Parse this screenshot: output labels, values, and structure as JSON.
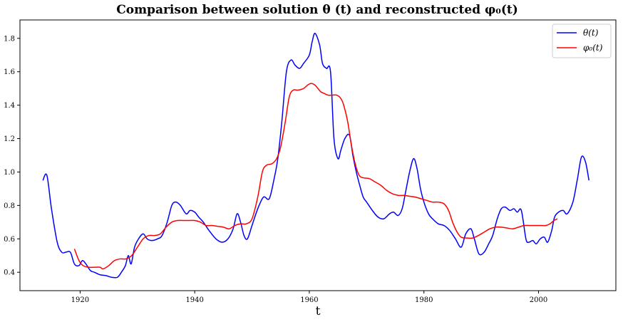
{
  "chart_data": {
    "type": "line",
    "title": "Comparison between solution θ (t)  and reconstructed  φ₀(t)",
    "xlabel": "t",
    "ylabel": "",
    "xlim": [
      1909.5,
      2013.5
    ],
    "ylim": [
      0.29,
      1.91
    ],
    "xticks": [
      1920,
      1940,
      1960,
      1980,
      2000
    ],
    "yticks": [
      0.4,
      0.6,
      0.8,
      1.0,
      1.2,
      1.4,
      1.6,
      1.8
    ],
    "xtick_labels": [
      "1920",
      "1940",
      "1960",
      "1980",
      "2000"
    ],
    "ytick_labels": [
      "0.4",
      "0.6",
      "0.8",
      "1.0",
      "1.2",
      "1.4",
      "1.6",
      "1.8"
    ],
    "grid": false,
    "legend_position": "top-right",
    "series": [
      {
        "name": "θ(t)",
        "color": "#0000ff",
        "x": [
          1913.5,
          1914.2,
          1915,
          1916,
          1916.8,
          1917.5,
          1918.3,
          1919,
          1919.8,
          1920.4,
          1921,
          1921.8,
          1922.5,
          1923.5,
          1924.5,
          1925.5,
          1926.5,
          1927.2,
          1927.9,
          1928.4,
          1928.9,
          1929.5,
          1930.2,
          1931,
          1931.7,
          1932.5,
          1933.5,
          1934.3,
          1935.2,
          1936,
          1936.7,
          1937.5,
          1938.5,
          1939.2,
          1940,
          1940.7,
          1941.5,
          1942.5,
          1943.7,
          1944.8,
          1945.8,
          1946.7,
          1947.4,
          1948,
          1948.6,
          1949.2,
          1950,
          1951,
          1952,
          1953,
          1953.8,
          1954.5,
          1955.2,
          1956,
          1956.8,
          1957.5,
          1958.3,
          1959,
          1960,
          1960.5,
          1961,
          1961.8,
          1962.3,
          1963,
          1963.7,
          1964.3,
          1965,
          1965.5,
          1966.2,
          1967,
          1967.6,
          1968.2,
          1968.8,
          1969.4,
          1970,
          1971,
          1972,
          1973,
          1974,
          1974.7,
          1975.5,
          1976.2,
          1976.8,
          1977.5,
          1978.2,
          1978.8,
          1979.4,
          1980,
          1980.8,
          1981.5,
          1982.5,
          1983.5,
          1984.5,
          1985.5,
          1986.5,
          1987.3,
          1988.2,
          1988.8,
          1989.6,
          1990.5,
          1991.3,
          1992,
          1992.8,
          1993.5,
          1994.2,
          1995,
          1995.7,
          1996.3,
          1997,
          1997.8,
          1998.3,
          1999,
          1999.6,
          2000.3,
          2001,
          2001.6,
          2002.3,
          2002.8,
          2003.5,
          2004.3,
          2005,
          2006,
          2006.8,
          2007.5,
          2008.2,
          2008.8
        ],
        "y": [
          0.95,
          0.98,
          0.78,
          0.58,
          0.52,
          0.52,
          0.52,
          0.45,
          0.44,
          0.47,
          0.45,
          0.41,
          0.4,
          0.385,
          0.38,
          0.37,
          0.37,
          0.4,
          0.44,
          0.5,
          0.45,
          0.55,
          0.6,
          0.63,
          0.6,
          0.59,
          0.6,
          0.62,
          0.7,
          0.8,
          0.82,
          0.8,
          0.75,
          0.77,
          0.76,
          0.73,
          0.7,
          0.65,
          0.6,
          0.58,
          0.6,
          0.66,
          0.75,
          0.7,
          0.62,
          0.6,
          0.68,
          0.78,
          0.85,
          0.84,
          0.95,
          1.08,
          1.3,
          1.6,
          1.67,
          1.64,
          1.62,
          1.65,
          1.7,
          1.78,
          1.83,
          1.76,
          1.65,
          1.62,
          1.6,
          1.2,
          1.08,
          1.13,
          1.2,
          1.22,
          1.1,
          1.0,
          0.92,
          0.85,
          0.82,
          0.77,
          0.73,
          0.72,
          0.75,
          0.76,
          0.74,
          0.78,
          0.88,
          1.0,
          1.08,
          1.02,
          0.9,
          0.82,
          0.75,
          0.72,
          0.69,
          0.68,
          0.65,
          0.6,
          0.55,
          0.63,
          0.66,
          0.6,
          0.51,
          0.52,
          0.57,
          0.62,
          0.72,
          0.78,
          0.79,
          0.77,
          0.78,
          0.76,
          0.77,
          0.6,
          0.58,
          0.59,
          0.57,
          0.6,
          0.61,
          0.58,
          0.65,
          0.73,
          0.76,
          0.77,
          0.75,
          0.82,
          0.96,
          1.09,
          1.06,
          0.95
        ]
      },
      {
        "name": "φ₀(t)",
        "color": "#ff0000",
        "x": [
          1919,
          1919.8,
          1920.5,
          1921.5,
          1922.5,
          1923.5,
          1924,
          1925,
          1926,
          1927,
          1928,
          1929,
          1930,
          1931,
          1932,
          1933,
          1934,
          1935,
          1936,
          1937,
          1938,
          1939,
          1940,
          1941,
          1942,
          1943,
          1944,
          1945,
          1946,
          1947,
          1948,
          1949,
          1950,
          1951,
          1951.8,
          1952.5,
          1953.5,
          1954.3,
          1955,
          1955.8,
          1956.5,
          1957.2,
          1958,
          1959,
          1959.7,
          1960.3,
          1961,
          1961.5,
          1962,
          1962.6,
          1963.3,
          1964,
          1964.8,
          1965.5,
          1966,
          1966.7,
          1967.3,
          1968,
          1968.7,
          1969.5,
          1970.5,
          1971.5,
          1972.5,
          1973.5,
          1974.5,
          1975.5,
          1976.5,
          1977.5,
          1978.5,
          1979.5,
          1980.5,
          1981.5,
          1982.5,
          1983.5,
          1984.3,
          1985,
          1985.8,
          1986.5,
          1987.5,
          1988.5,
          1989.5,
          1990.5,
          1991.5,
          1992.5,
          1993.5,
          1994.5,
          1995.5,
          1996.5,
          1997.5,
          1998.5,
          1999.5,
          2000.5,
          2001.3,
          2002,
          2002.7,
          2003.3
        ],
        "y": [
          0.54,
          0.47,
          0.44,
          0.43,
          0.43,
          0.43,
          0.42,
          0.44,
          0.47,
          0.48,
          0.48,
          0.5,
          0.55,
          0.6,
          0.62,
          0.62,
          0.63,
          0.67,
          0.7,
          0.71,
          0.71,
          0.71,
          0.71,
          0.7,
          0.68,
          0.68,
          0.675,
          0.67,
          0.66,
          0.68,
          0.69,
          0.69,
          0.72,
          0.85,
          1.0,
          1.04,
          1.05,
          1.08,
          1.15,
          1.3,
          1.45,
          1.49,
          1.49,
          1.5,
          1.52,
          1.53,
          1.52,
          1.5,
          1.48,
          1.47,
          1.46,
          1.46,
          1.46,
          1.44,
          1.4,
          1.3,
          1.17,
          1.05,
          0.98,
          0.965,
          0.96,
          0.94,
          0.92,
          0.89,
          0.87,
          0.86,
          0.86,
          0.855,
          0.85,
          0.84,
          0.83,
          0.82,
          0.82,
          0.81,
          0.77,
          0.7,
          0.64,
          0.61,
          0.605,
          0.605,
          0.62,
          0.64,
          0.66,
          0.67,
          0.67,
          0.665,
          0.66,
          0.67,
          0.68,
          0.68,
          0.68,
          0.68,
          0.68,
          0.69,
          0.71,
          0.72
        ]
      }
    ]
  }
}
